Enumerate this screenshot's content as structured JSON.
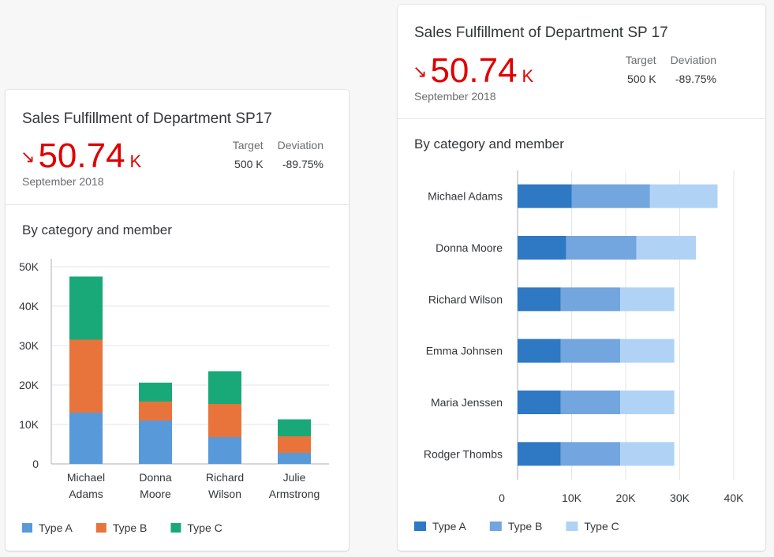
{
  "cards": [
    {
      "title": "Sales Fulfillment of Department SP17",
      "kpi": {
        "arrow": "↘",
        "value": "50.74",
        "unit": "K",
        "color": "#e00000"
      },
      "period": "September 2018",
      "target_label": "Target",
      "target_value": "500 K",
      "deviation_label": "Deviation",
      "deviation_value": "-89.75%",
      "section_title": "By category and member"
    },
    {
      "title": "Sales Fulfillment of Department SP 17",
      "kpi": {
        "arrow": "↘",
        "value": "50.74",
        "unit": "K",
        "color": "#e00000"
      },
      "period": "September 2018",
      "target_label": "Target",
      "target_value": "500 K",
      "deviation_label": "Deviation",
      "deviation_value": "-89.75%",
      "section_title": "By category and member"
    }
  ],
  "chart_data": [
    {
      "type": "bar",
      "orientation": "vertical",
      "stacked": true,
      "categories": [
        "Michael Adams",
        "Donna Moore",
        "Richard Wilson",
        "Julie Armstrong"
      ],
      "series": [
        {
          "name": "Type A",
          "values": [
            13000,
            11000,
            6800,
            2800
          ],
          "color": "#5899da"
        },
        {
          "name": "Type B",
          "values": [
            18500,
            4800,
            8400,
            4200
          ],
          "color": "#e8743b"
        },
        {
          "name": "Type C",
          "values": [
            16000,
            4800,
            8300,
            4300
          ],
          "color": "#19a979"
        }
      ],
      "ylim": [
        0,
        50000
      ],
      "yticks": [
        "0",
        "10K",
        "20K",
        "30K",
        "40K",
        "50K"
      ],
      "grid": true,
      "legend": "bottom-left"
    },
    {
      "type": "bar",
      "orientation": "horizontal",
      "stacked": true,
      "categories": [
        "Michael Adams",
        "Donna Moore",
        "Richard Wilson",
        "Emma Johnsen",
        "Maria Jenssen",
        "Rodger  Thombs"
      ],
      "series": [
        {
          "name": "Type A",
          "values": [
            10000,
            9000,
            8000,
            8000,
            8000,
            8000
          ],
          "color": "#2f78c4"
        },
        {
          "name": "Type B",
          "values": [
            14500,
            13000,
            11000,
            11000,
            11000,
            11000
          ],
          "color": "#73a5de"
        },
        {
          "name": "Type C",
          "values": [
            12500,
            11000,
            10000,
            10000,
            10000,
            10000
          ],
          "color": "#b0d3f5"
        }
      ],
      "xlim": [
        0,
        40000
      ],
      "xticks": [
        "0",
        "10K",
        "20K",
        "30K",
        "40K"
      ],
      "grid": true,
      "legend": "bottom-left"
    }
  ]
}
